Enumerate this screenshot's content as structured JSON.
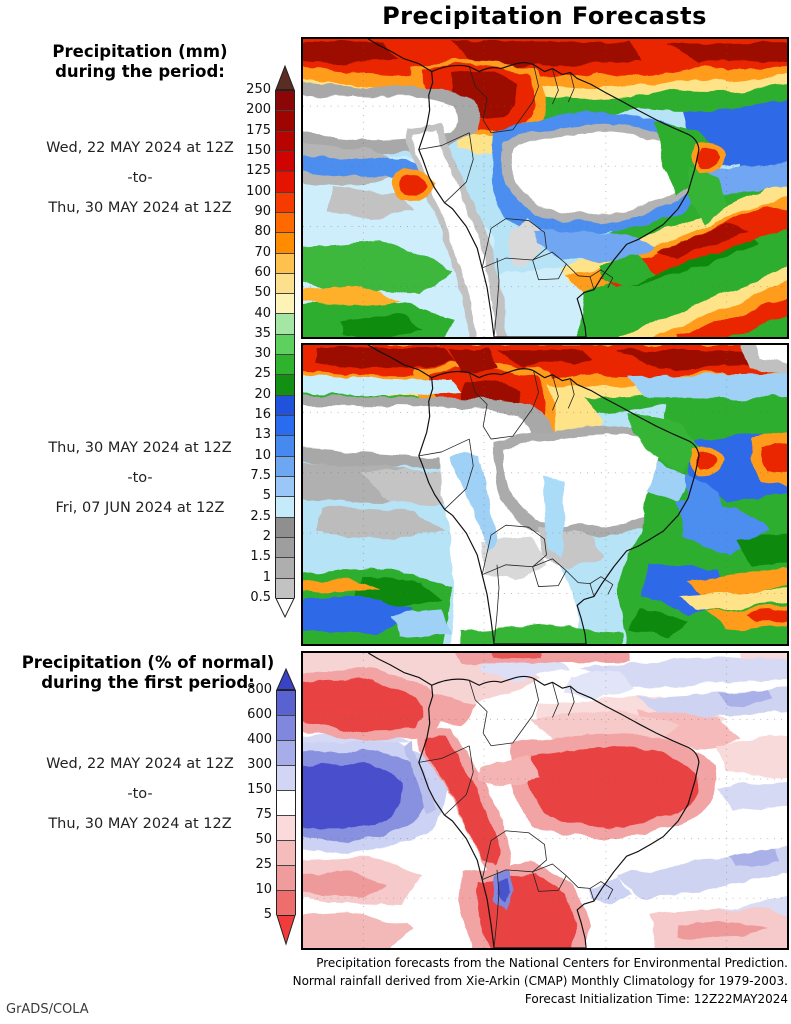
{
  "title": "Precipitation Forecasts",
  "attribution": "GrADS/COLA",
  "left_column": {
    "mm_heading": [
      "Precipitation (mm)",
      "during the period:"
    ],
    "period1": [
      "Wed, 22 MAY 2024 at 12Z",
      "-to-",
      "Thu, 30 MAY 2024 at 12Z"
    ],
    "period2": [
      "Thu, 30 MAY 2024 at 12Z",
      "-to-",
      "Fri, 07 JUN 2024 at 12Z"
    ],
    "pct_heading": [
      "Precipitation (% of normal)",
      "during the first period:"
    ],
    "period3": [
      "Wed, 22 MAY 2024 at 12Z",
      "-to-",
      "Thu, 30 MAY 2024 at 12Z"
    ]
  },
  "caption": [
    "Precipitation forecasts from the National Centers for Environmental Prediction.",
    "Normal rainfall derived from Xie-Arkin (CMAP) Monthly Climatology for 1979-2003.",
    "Forecast Initialization Time: 12Z22MAY2024"
  ],
  "colorbars": {
    "mm": {
      "units": "mm",
      "levels": [
        "250",
        "200",
        "175",
        "150",
        "125",
        "100",
        "90",
        "80",
        "70",
        "60",
        "50",
        "40",
        "35",
        "30",
        "25",
        "20",
        "16",
        "13",
        "10",
        "7.5",
        "5",
        "2.5",
        "2",
        "1.5",
        "1",
        "0.5"
      ],
      "segment_colors": [
        "#8b0606",
        "#9f0500",
        "#b80400",
        "#cf0300",
        "#e51400",
        "#f63b00",
        "#ff6a00",
        "#ff8c00",
        "#ffc14d",
        "#fde08c",
        "#fdf3b7",
        "#a5e6a5",
        "#5ed05e",
        "#2fb32f",
        "#138f13",
        "#2052dc",
        "#2a6cf0",
        "#4689ef",
        "#6da7f2",
        "#9ac7f7",
        "#c5ebfb",
        "#8f8f8f",
        "#9e9e9e",
        "#aeaeae",
        "#c2c2c2"
      ],
      "arrow_top_color": "#5a2c24",
      "arrow_bottom_color": "#ffffff"
    },
    "percent": {
      "units": "% of normal",
      "levels": [
        "800",
        "600",
        "400",
        "300",
        "150",
        "75",
        "50",
        "25",
        "10",
        "5"
      ],
      "segment_colors": [
        "#5a62d2",
        "#7f87de",
        "#a7ade9",
        "#d2d5f4",
        "#ffffff",
        "#fadada",
        "#f5bcbc",
        "#f09c9c",
        "#ee6e6e"
      ],
      "arrow_top_color": "#3a42c6",
      "arrow_bottom_color": "#f23c3c"
    }
  },
  "panels": [
    {
      "name": "Precipitation (mm) forecast map, period 1",
      "region": "South America"
    },
    {
      "name": "Precipitation (mm) forecast map, period 2",
      "region": "South America"
    },
    {
      "name": "Precipitation (% of normal) forecast map, first period",
      "region": "South America"
    }
  ]
}
